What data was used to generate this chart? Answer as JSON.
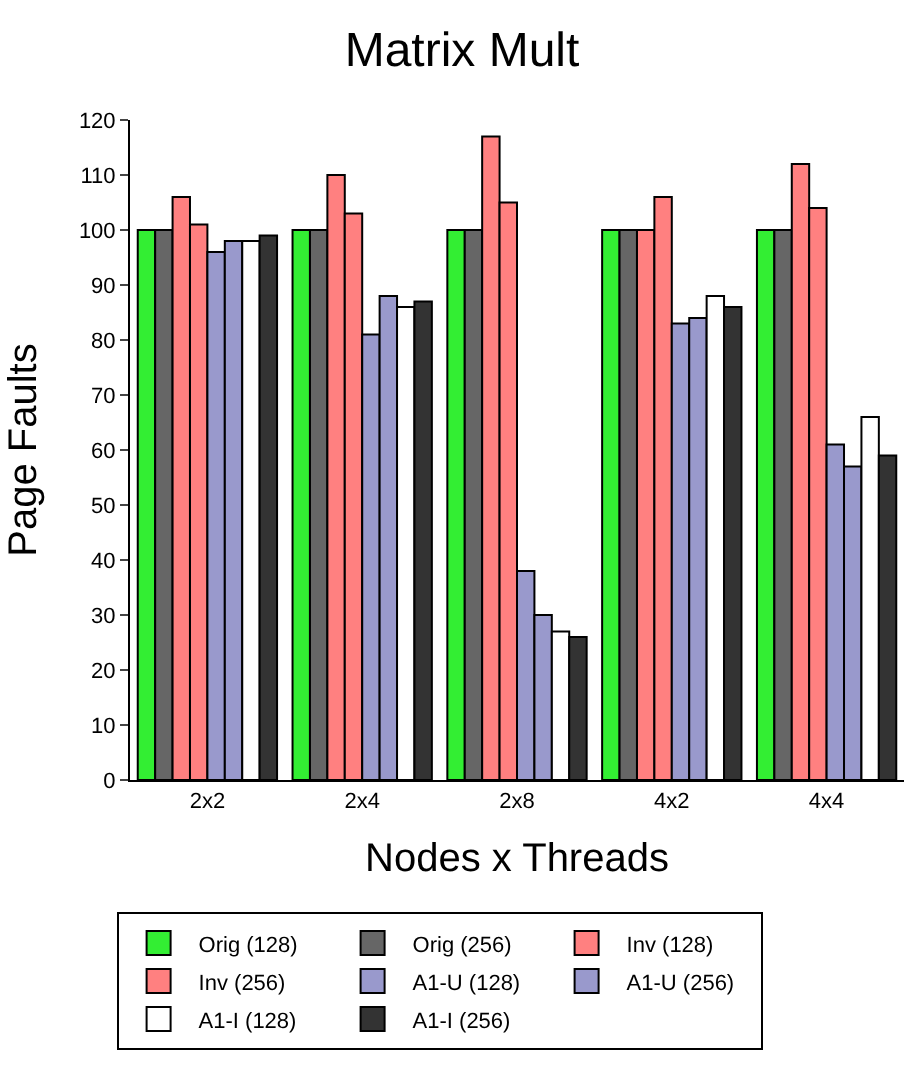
{
  "chart_data": {
    "type": "bar",
    "title": "Matrix Mult",
    "xlabel": "Nodes x Threads",
    "ylabel": "Page Faults",
    "categories": [
      "2x2",
      "2x4",
      "2x8",
      "4x2",
      "4x4"
    ],
    "series": [
      {
        "name": "Orig (128)",
        "color": "#33ee33",
        "values": [
          100,
          100,
          100,
          100,
          100
        ]
      },
      {
        "name": "Orig (256)",
        "color": "#666666",
        "values": [
          100,
          100,
          100,
          100,
          100
        ]
      },
      {
        "name": "Inv (128)",
        "color": "#ff8080",
        "values": [
          106,
          110,
          117,
          100,
          112
        ]
      },
      {
        "name": "Inv (256)",
        "color": "#ff8080",
        "values": [
          101,
          103,
          105,
          106,
          104
        ]
      },
      {
        "name": "A1-U (128)",
        "color": "#9999cc",
        "values": [
          96,
          81,
          38,
          83,
          61
        ]
      },
      {
        "name": "A1-U (256)",
        "color": "#9999cc",
        "values": [
          98,
          88,
          30,
          84,
          57
        ]
      },
      {
        "name": "A1-I (128)",
        "color": "#ffffff",
        "values": [
          98,
          86,
          27,
          88,
          66
        ]
      },
      {
        "name": "A1-I (256)",
        "color": "#333333",
        "values": [
          99,
          87,
          26,
          86,
          59
        ]
      }
    ],
    "ylim": [
      0,
      120
    ],
    "yticks": [
      0,
      10,
      20,
      30,
      40,
      50,
      60,
      70,
      80,
      90,
      100,
      110,
      120
    ],
    "legend": "bottom"
  }
}
